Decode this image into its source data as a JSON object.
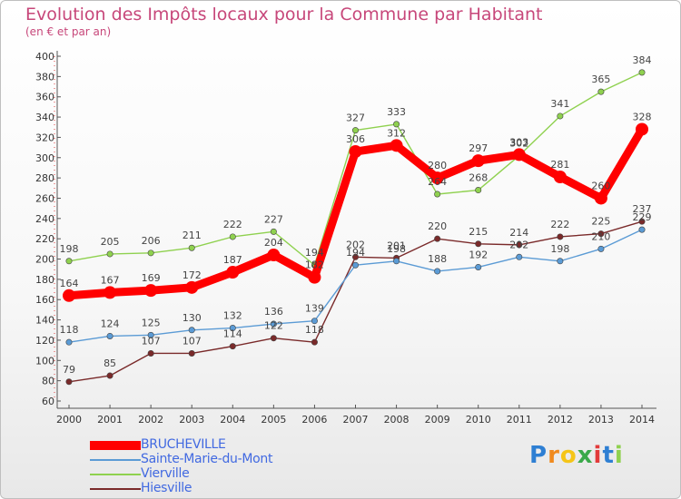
{
  "chart_data": {
    "type": "line",
    "title": "Evolution des Impôts locaux pour la Commune par Habitant",
    "subtitle": "(en € et par an)",
    "categories": [
      "2000",
      "2001",
      "2002",
      "2003",
      "2004",
      "2005",
      "2006",
      "2007",
      "2008",
      "2009",
      "2010",
      "2011",
      "2012",
      "2013",
      "2014"
    ],
    "ylim": [
      60,
      400
    ],
    "yticks": [
      60,
      80,
      100,
      120,
      140,
      160,
      180,
      200,
      220,
      240,
      260,
      280,
      300,
      320,
      340,
      360,
      380,
      400
    ],
    "grid": false,
    "legend_position": "bottom-left",
    "series": [
      {
        "name": "BRUCHEVILLE",
        "color": "#ff0000",
        "values": [
          164,
          167,
          169,
          172,
          187,
          204,
          182,
          306,
          312,
          280,
          297,
          303,
          281,
          260,
          328
        ]
      },
      {
        "name": "Sainte-Marie-du-Mont",
        "color": "#5b9bd5",
        "values": [
          118,
          124,
          125,
          130,
          132,
          136,
          139,
          194,
          198,
          188,
          192,
          202,
          198,
          210,
          229
        ]
      },
      {
        "name": "Vierville",
        "color": "#8fd14f",
        "values": [
          198,
          205,
          206,
          211,
          222,
          227,
          194,
          327,
          333,
          264,
          268,
          302,
          341,
          365,
          384
        ]
      },
      {
        "name": "Hiesville",
        "color": "#7a2a2a",
        "values": [
          79,
          85,
          107,
          107,
          114,
          122,
          118,
          202,
          201,
          220,
          215,
          214,
          222,
          225,
          237
        ]
      }
    ]
  },
  "legend": {
    "label_color": "#4169e1"
  },
  "logo": {
    "letters": [
      "P",
      "r",
      "o",
      "x",
      "i",
      "t",
      "i"
    ],
    "colors": [
      "#2e7fd3",
      "#f08a1e",
      "#f5c518",
      "#3aa94a",
      "#e23b3b",
      "#2e7fd3",
      "#8fd14f"
    ]
  }
}
